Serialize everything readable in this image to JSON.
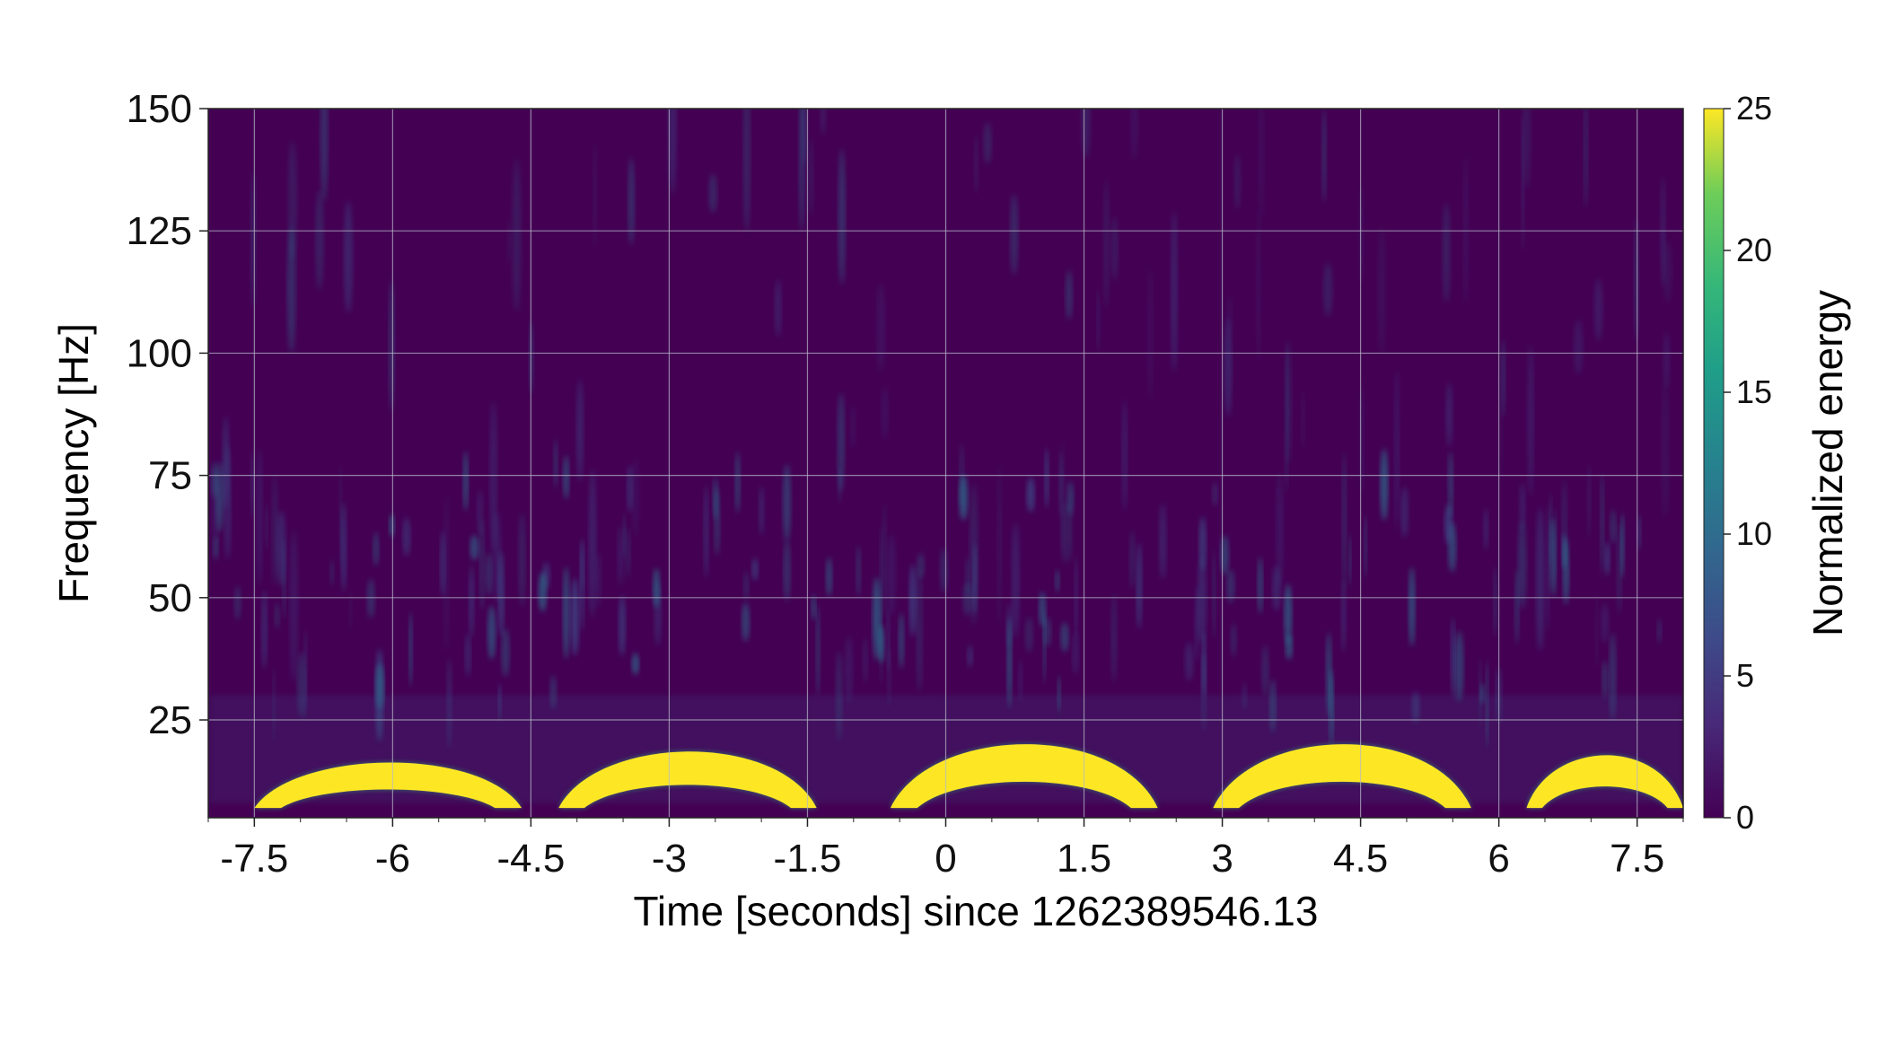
{
  "chart_data": {
    "type": "heatmap",
    "title": "",
    "xlabel": "Time [seconds] since 1262389546.13",
    "ylabel": "Frequency [Hz]",
    "colorbar_label": "Normalized energy",
    "colormap": "viridis",
    "xlim": [
      -8.0,
      8.0
    ],
    "ylim": [
      5,
      150
    ],
    "clim": [
      0,
      25
    ],
    "x_ticks": [
      -7.5,
      -6,
      -4.5,
      -3,
      -1.5,
      0,
      1.5,
      3,
      4.5,
      6,
      7.5
    ],
    "x_tick_labels": [
      "-7.5",
      "-6",
      "-4.5",
      "-3",
      "-1.5",
      "0",
      "1.5",
      "3",
      "4.5",
      "6",
      "7.5"
    ],
    "y_ticks": [
      25,
      50,
      75,
      100,
      125,
      150
    ],
    "y_tick_labels": [
      "25",
      "50",
      "75",
      "100",
      "125",
      "150"
    ],
    "colorbar_ticks": [
      0,
      5,
      10,
      15,
      20,
      25
    ],
    "colorbar_tick_labels": [
      "0",
      "5",
      "10",
      "15",
      "20",
      "25"
    ],
    "grid": true,
    "background_energy": 1,
    "arches": [
      {
        "t_start": -7.5,
        "t_end": -4.6,
        "f_peak": 19,
        "f_low": 7,
        "energy": 25
      },
      {
        "t_start": -4.2,
        "t_end": -1.4,
        "f_peak": 22,
        "f_low": 7,
        "energy": 25
      },
      {
        "t_start": -0.6,
        "t_end": 2.3,
        "f_peak": 24,
        "f_low": 7,
        "energy": 25
      },
      {
        "t_start": 2.9,
        "t_end": 5.7,
        "f_peak": 24,
        "f_low": 7,
        "energy": 25
      },
      {
        "t_start": 6.3,
        "t_end": 8.0,
        "f_peak": 21,
        "f_low": 7,
        "energy": 25
      }
    ],
    "colors": {
      "background": "#440154",
      "saturated": "#FDE725",
      "grid": "#B8B8C8"
    }
  }
}
